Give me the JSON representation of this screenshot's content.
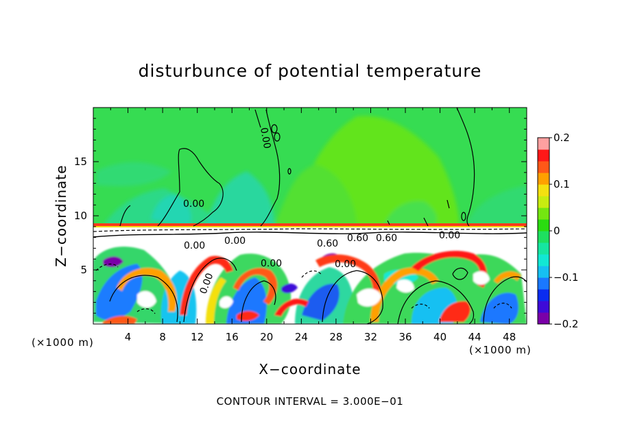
{
  "chart_data": {
    "type": "heatmap",
    "title": "disturbunce of potential temperature",
    "xlabel": "X−coordinate",
    "ylabel": "Z−coordinate",
    "x_unit_left": "(×1000 m)",
    "x_unit_right": "(×1000 m)",
    "footer": "CONTOUR INTERVAL = 3.000E−01",
    "xlim": [
      0,
      50
    ],
    "ylim": [
      0,
      20
    ],
    "x_ticks": [
      4,
      8,
      12,
      16,
      20,
      24,
      28,
      32,
      36,
      40,
      44,
      48
    ],
    "y_ticks": [
      5,
      10,
      15
    ],
    "x_tick_labels": [
      "4",
      "8",
      "12",
      "16",
      "20",
      "24",
      "28",
      "32",
      "36",
      "40",
      "44",
      "48"
    ],
    "y_tick_labels": [
      "5",
      "10",
      "15"
    ],
    "colorbar": {
      "range": [
        -0.2,
        0.2
      ],
      "tick_values": [
        0.2,
        0.1,
        0,
        -0.1,
        -0.2
      ],
      "tick_labels": [
        "0.2",
        "0.1",
        "0",
        "−0.1",
        "−0.2"
      ],
      "colors": [
        "#7a00a8",
        "#3e0ad8",
        "#0a2cf0",
        "#1a78ff",
        "#16c0f2",
        "#12e8d4",
        "#16e6a0",
        "#1ee060",
        "#2adc10",
        "#74e610",
        "#c8ec10",
        "#f4e010",
        "#ffa000",
        "#ff5818",
        "#ff1818",
        "#ffa0a0"
      ]
    },
    "contour_labels": [
      "0.00",
      "0.00",
      "0.00",
      "0.60",
      "0.00",
      "0.00",
      "0.00",
      "0.60",
      "0.60",
      "0.00",
      "0.00"
    ],
    "fields": {
      "upper_layer": {
        "z_range": [
          9,
          20
        ],
        "description_colors": [
          "#2bdc58",
          "#2ad698",
          "#62e614"
        ]
      },
      "inversion_z": 9,
      "lower_layer": {
        "z_range": [
          0,
          8.5
        ]
      }
    }
  }
}
